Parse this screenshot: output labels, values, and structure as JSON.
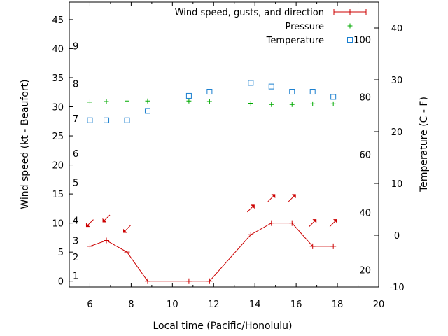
{
  "chart_data": {
    "type": "line",
    "xlabel": "Local time (Pacific/Honolulu)",
    "ylabel": "Wind speed (kt - Beaufort)",
    "y2label": "Temperature (C - F)",
    "xlim": [
      5,
      20
    ],
    "ylim": [
      -1,
      48
    ],
    "y2lim": [
      -10,
      45
    ],
    "x_ticks": [
      6,
      8,
      10,
      12,
      14,
      16,
      18,
      20
    ],
    "y_ticks": [
      0,
      5,
      10,
      15,
      20,
      25,
      30,
      35,
      40,
      45
    ],
    "y2_ticks_c": [
      -10,
      0,
      10,
      20,
      30,
      40
    ],
    "fahrenheit_labels": [
      {
        "label": "20",
        "c": -6.7
      },
      {
        "label": "40",
        "c": 4.4
      },
      {
        "label": "60",
        "c": 15.6
      },
      {
        "label": "80",
        "c": 26.7
      },
      {
        "label": "100",
        "c": 37.8
      }
    ],
    "beaufort_labels": [
      {
        "label": "1",
        "y": 1.0
      },
      {
        "label": "2",
        "y": 4.2
      },
      {
        "label": "3",
        "y": 7.0
      },
      {
        "label": "4",
        "y": 10.5
      },
      {
        "label": "5",
        "y": 17.0
      },
      {
        "label": "6",
        "y": 22.0
      },
      {
        "label": "7",
        "y": 28.0
      },
      {
        "label": "8",
        "y": 34.0
      },
      {
        "label": "9",
        "y": 40.5
      }
    ],
    "series": [
      {
        "name": "Wind speed, gusts, and direction",
        "color": "#cc0000",
        "x": [
          6,
          6.8,
          7.8,
          8.8,
          10.8,
          11.8,
          13.8,
          14.8,
          15.8,
          16.8,
          17.8
        ],
        "values": [
          6,
          7,
          5,
          0,
          0,
          0,
          8,
          10,
          10,
          6,
          6
        ]
      },
      {
        "name": "Pressure",
        "color": "#00aa00",
        "x": [
          6,
          6.8,
          7.8,
          8.8,
          10.8,
          11.8,
          13.8,
          14.8,
          15.8,
          16.8,
          17.8
        ],
        "values": [
          30.8,
          30.9,
          31.0,
          31.0,
          31.0,
          30.9,
          30.6,
          30.4,
          30.4,
          30.5,
          30.5
        ]
      },
      {
        "name": "Temperature",
        "color": "#1a7fcf",
        "axis": "right",
        "x": [
          6,
          6.8,
          7.8,
          8.8,
          10.8,
          11.8,
          13.8,
          14.8,
          15.8,
          16.8,
          17.8
        ],
        "values": [
          22.2,
          22.2,
          22.2,
          24.0,
          26.9,
          27.7,
          29.4,
          28.7,
          27.7,
          27.7,
          26.7
        ]
      }
    ],
    "wind_arrows": [
      {
        "x": 6.0,
        "y": 10.0,
        "dir": "ne"
      },
      {
        "x": 6.8,
        "y": 10.8,
        "dir": "ne"
      },
      {
        "x": 7.8,
        "y": 9.0,
        "dir": "ne"
      },
      {
        "x": 13.8,
        "y": 12.5,
        "dir": "sw"
      },
      {
        "x": 14.8,
        "y": 14.3,
        "dir": "sw"
      },
      {
        "x": 15.8,
        "y": 14.3,
        "dir": "sw"
      },
      {
        "x": 16.8,
        "y": 10.0,
        "dir": "sw"
      },
      {
        "x": 17.8,
        "y": 10.0,
        "dir": "sw"
      }
    ],
    "legend_position": "top-right"
  }
}
